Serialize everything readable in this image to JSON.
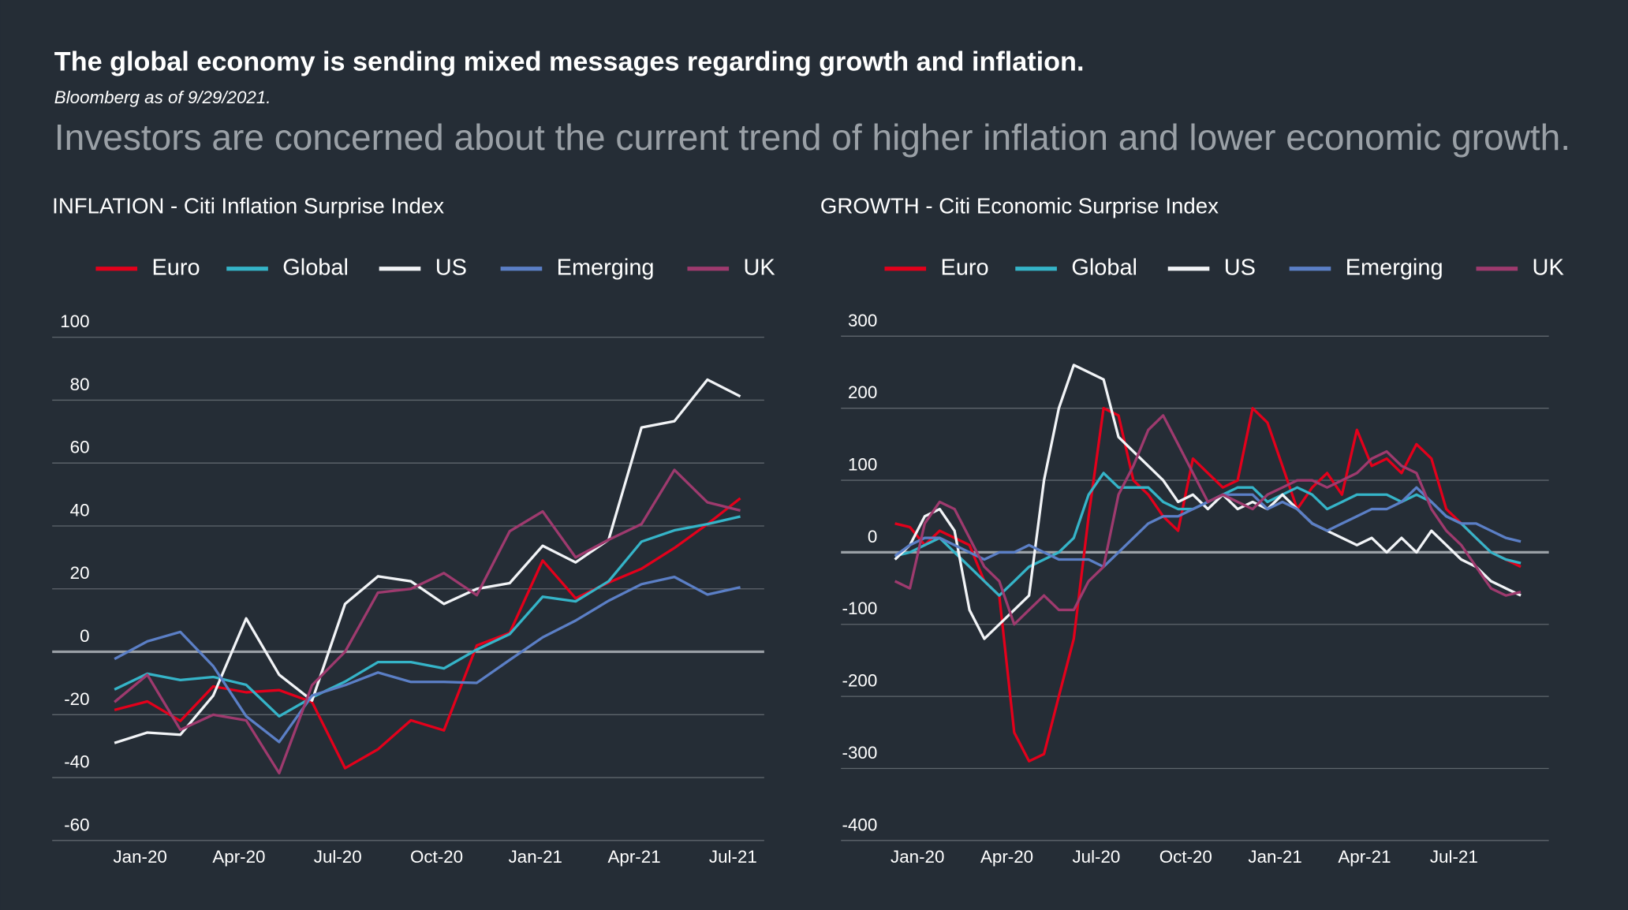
{
  "header": {
    "title": "The global economy is sending mixed messages regarding growth and inflation.",
    "source": "Bloomberg as of 9/29/2021.",
    "headline": "Investors are concerned about the current trend of higher inflation and lower economic growth."
  },
  "chart_data": [
    {
      "type": "line",
      "title": "INFLATION - Citi Inflation Surprise Index",
      "categories": [
        null,
        "Jan-20",
        null,
        null,
        "Apr-20",
        null,
        null,
        "Jul-20",
        null,
        null,
        "Oct-20",
        null,
        null,
        "Jan-21",
        null,
        null,
        "Apr-21",
        null,
        null,
        "Jul-21"
      ],
      "ylim": [
        -60,
        100
      ],
      "yticks": [
        -60,
        -40,
        -20,
        0,
        20,
        40,
        60,
        80,
        100
      ],
      "grid": true,
      "legend": "top",
      "series": [
        {
          "name": "Euro",
          "color": "#e3001b",
          "values": [
            -18.5,
            -15.8,
            -22,
            -11,
            -12.9,
            -12.2,
            -16,
            -37,
            -31,
            -21.8,
            -25,
            2,
            6,
            29,
            17,
            22,
            26.4,
            33,
            40.6,
            48.8
          ]
        },
        {
          "name": "Global",
          "color": "#35b4c8",
          "values": [
            -12,
            -7,
            -9,
            -8,
            -10.5,
            -20.5,
            -14.5,
            -9.5,
            -3.3,
            -3.3,
            -5.3,
            0.7,
            5.6,
            17.5,
            16,
            22.4,
            35,
            38.6,
            40.6,
            43
          ]
        },
        {
          "name": "US",
          "color": "#f2f4f7",
          "values": [
            -29,
            -25.7,
            -26.4,
            -13.9,
            10.6,
            -7.3,
            -15.5,
            15.2,
            24,
            22.4,
            15.2,
            20,
            21.8,
            33.7,
            28.4,
            35.6,
            71.3,
            73.3,
            86.5,
            81.2
          ]
        },
        {
          "name": "Emerging",
          "color": "#5b7fc6",
          "values": [
            -2.3,
            3.3,
            6.3,
            -4.6,
            -20.5,
            -28.7,
            -13.9,
            -10.6,
            -6.6,
            -9.6,
            -9.6,
            -9.9,
            -2.6,
            4.6,
            9.9,
            16.2,
            21.5,
            23.8,
            18.2,
            20.5
          ]
        },
        {
          "name": "UK",
          "color": "#9e3a6e",
          "values": [
            -16,
            -7.3,
            -24.8,
            -20,
            -21.8,
            -38.6,
            -10.6,
            0,
            18.8,
            20,
            25,
            18,
            38.3,
            44.6,
            30,
            35.6,
            40.6,
            57.8,
            47.5,
            44.9
          ]
        }
      ]
    },
    {
      "type": "line",
      "title": "GROWTH - Citi Economic Surprise Index",
      "categories": [
        null,
        null,
        "Jan-20",
        null,
        null,
        null,
        null,
        null,
        "Apr-20",
        null,
        null,
        null,
        null,
        null,
        "Jul-20",
        null,
        null,
        null,
        null,
        null,
        "Oct-20",
        null,
        null,
        null,
        null,
        null,
        "Jan-21",
        null,
        null,
        null,
        null,
        null,
        "Apr-21",
        null,
        null,
        null,
        null,
        null,
        "Jul-21",
        null,
        null,
        null,
        null
      ],
      "ylim": [
        -400,
        300
      ],
      "yticks": [
        -400,
        -300,
        -200,
        -100,
        0,
        100,
        200,
        300
      ],
      "grid": true,
      "legend": "top",
      "series": [
        {
          "name": "Euro",
          "color": "#e3001b",
          "values": [
            40,
            35,
            10,
            30,
            20,
            10,
            -40,
            -60,
            -250,
            -290,
            -280,
            -200,
            -120,
            50,
            200,
            190,
            100,
            80,
            50,
            30,
            130,
            110,
            90,
            100,
            200,
            180,
            120,
            60,
            90,
            110,
            80,
            170,
            120,
            130,
            110,
            150,
            130,
            60,
            40,
            20,
            0,
            -10,
            -20
          ]
        },
        {
          "name": "Global",
          "color": "#35b4c8",
          "values": [
            -5,
            0,
            10,
            20,
            0,
            -20,
            -40,
            -60,
            -40,
            -20,
            -10,
            0,
            20,
            80,
            110,
            90,
            90,
            90,
            70,
            60,
            60,
            70,
            80,
            90,
            90,
            70,
            80,
            90,
            80,
            60,
            70,
            80,
            80,
            80,
            70,
            80,
            70,
            50,
            40,
            20,
            0,
            -10,
            -15
          ]
        },
        {
          "name": "US",
          "color": "#f2f4f7",
          "values": [
            -10,
            10,
            50,
            60,
            30,
            -80,
            -120,
            -100,
            -80,
            -60,
            100,
            200,
            260,
            250,
            240,
            160,
            140,
            120,
            100,
            70,
            80,
            60,
            80,
            60,
            70,
            60,
            80,
            60,
            40,
            30,
            20,
            10,
            20,
            0,
            20,
            0,
            30,
            10,
            -10,
            -20,
            -40,
            -50,
            -60
          ]
        },
        {
          "name": "Emerging",
          "color": "#5b7fc6",
          "values": [
            -5,
            10,
            20,
            20,
            10,
            0,
            -10,
            0,
            0,
            10,
            0,
            -10,
            -10,
            -10,
            -20,
            0,
            20,
            40,
            50,
            50,
            60,
            70,
            80,
            80,
            80,
            60,
            70,
            60,
            40,
            30,
            40,
            50,
            60,
            60,
            70,
            90,
            70,
            50,
            40,
            40,
            30,
            20,
            15
          ]
        },
        {
          "name": "UK",
          "color": "#9e3a6e",
          "values": [
            -40,
            -50,
            40,
            70,
            60,
            20,
            -20,
            -40,
            -100,
            -80,
            -60,
            -80,
            -80,
            -40,
            -20,
            80,
            120,
            170,
            190,
            150,
            110,
            70,
            80,
            70,
            60,
            80,
            90,
            100,
            100,
            90,
            100,
            110,
            130,
            140,
            120,
            110,
            60,
            30,
            10,
            -20,
            -50,
            -60,
            -55
          ]
        }
      ]
    }
  ]
}
